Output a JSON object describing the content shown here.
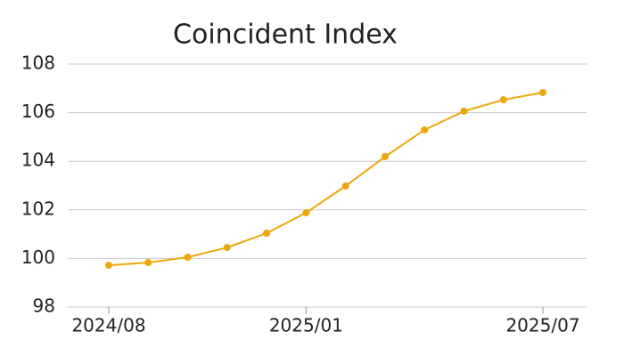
{
  "chart_data": {
    "type": "line",
    "title": "Coincident Index",
    "categories": [
      "2024/08",
      null,
      null,
      null,
      null,
      "2025/01",
      null,
      null,
      null,
      null,
      null,
      "2025/07"
    ],
    "series": [
      {
        "name": "Coincident Index",
        "color": "#eca70a",
        "values": [
          99.72,
          99.83,
          100.05,
          100.45,
          101.04,
          101.88,
          102.98,
          104.19,
          105.29,
          106.06,
          106.53,
          106.83
        ]
      }
    ],
    "ylim": [
      98,
      108
    ],
    "yticks": [
      98,
      100,
      102,
      104,
      106,
      108
    ],
    "grid": true
  }
}
